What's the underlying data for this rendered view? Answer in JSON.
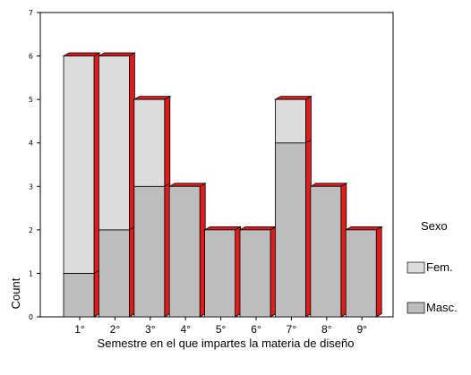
{
  "chart_data": {
    "type": "bar",
    "stacked": true,
    "style": "3d",
    "categories": [
      "1°",
      "2°",
      "3°",
      "4°",
      "5°",
      "6°",
      "7°",
      "8°",
      "9°"
    ],
    "series": [
      {
        "name": "Masc.",
        "values": [
          1,
          2,
          3,
          3,
          2,
          2,
          4,
          3,
          2
        ],
        "color": "#bdbdbd"
      },
      {
        "name": "Fem.",
        "values": [
          5,
          4,
          2,
          0,
          0,
          0,
          1,
          0,
          0
        ],
        "color": "#dcdcdc"
      }
    ],
    "side_color": "#e01b1b",
    "xlabel": "Semestre en el que impartes la materia de diseño",
    "ylabel": "Count",
    "ylim": [
      0,
      7
    ],
    "yticks": [
      0,
      1,
      2,
      3,
      4,
      5,
      6,
      7
    ],
    "legend_title": "Sexo",
    "legend_position": "right",
    "legend_entries": [
      "Fem.",
      "Masc."
    ],
    "grid": false
  }
}
